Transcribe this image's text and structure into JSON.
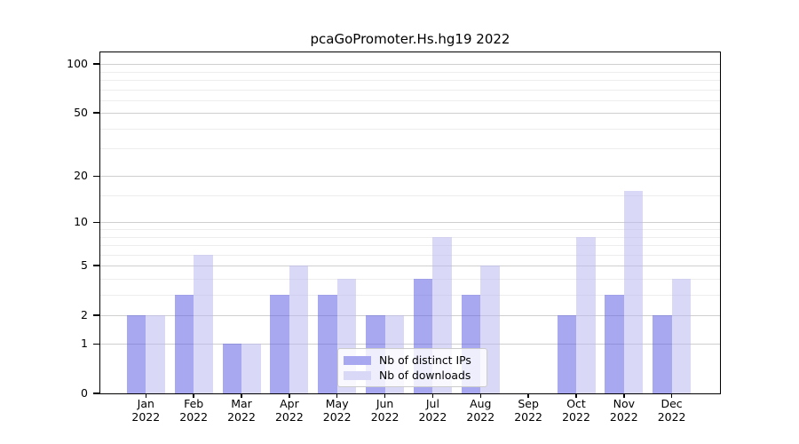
{
  "chart_data": {
    "type": "bar",
    "title": "pcaGoPromoter.Hs.hg19 2022",
    "categories": [
      "Jan",
      "Feb",
      "Mar",
      "Apr",
      "May",
      "Jun",
      "Jul",
      "Aug",
      "Sep",
      "Oct",
      "Nov",
      "Dec"
    ],
    "category_year": "2022",
    "series": [
      {
        "name": "Nb of distinct IPs",
        "legend_color": "#a8a8f0",
        "fill": "rgba(97,97,228,0.55)",
        "values": [
          2,
          3,
          1,
          3,
          3,
          2,
          4,
          3,
          0,
          2,
          3,
          2
        ]
      },
      {
        "name": "Nb of downloads",
        "legend_color": "#d9d9f7",
        "fill": "rgba(186,186,240,0.55)",
        "values": [
          2,
          6,
          1,
          5,
          4,
          2,
          8,
          5,
          0,
          8,
          16,
          4
        ]
      }
    ],
    "y_axis": {
      "scale": "log1p",
      "max": 118,
      "major_ticks": [
        0,
        1,
        2,
        5,
        10,
        20,
        50,
        100
      ],
      "minor_ticks": [
        3,
        4,
        6,
        7,
        8,
        9,
        15,
        30,
        40,
        60,
        70,
        80,
        90
      ]
    },
    "xlabel": "",
    "ylabel": "",
    "grid": true,
    "legend_position": "bottom-center"
  },
  "colors": {
    "major_grid": "#cfcfcf",
    "minor_grid": "#ededed",
    "axis": "#000000"
  }
}
